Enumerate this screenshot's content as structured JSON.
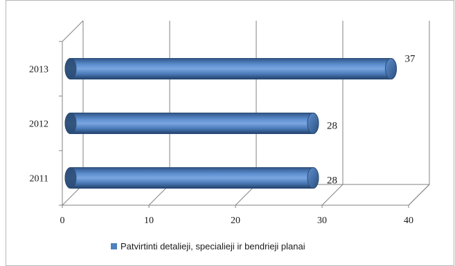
{
  "chart_data": {
    "type": "bar",
    "orientation": "horizontal",
    "style": "3d-cylinder",
    "categories": [
      "2011",
      "2012",
      "2013"
    ],
    "series": [
      {
        "name": "Patvirtinti detalieji, specialieji ir bendrieji planai",
        "values": [
          28,
          28,
          37
        ],
        "color": "#4f81bd"
      }
    ],
    "data_labels": [
      "28",
      "28",
      "37"
    ],
    "x_ticks": [
      "0",
      "10",
      "20",
      "30",
      "40"
    ],
    "xlim": [
      0,
      40
    ],
    "grid": true,
    "legend_position": "bottom",
    "title": "",
    "xlabel": "",
    "ylabel": ""
  },
  "colors": {
    "bar": "#4f81bd",
    "bar_dark": "#2c4d75",
    "bar_light": "#9dbde6",
    "grid": "#808080"
  }
}
